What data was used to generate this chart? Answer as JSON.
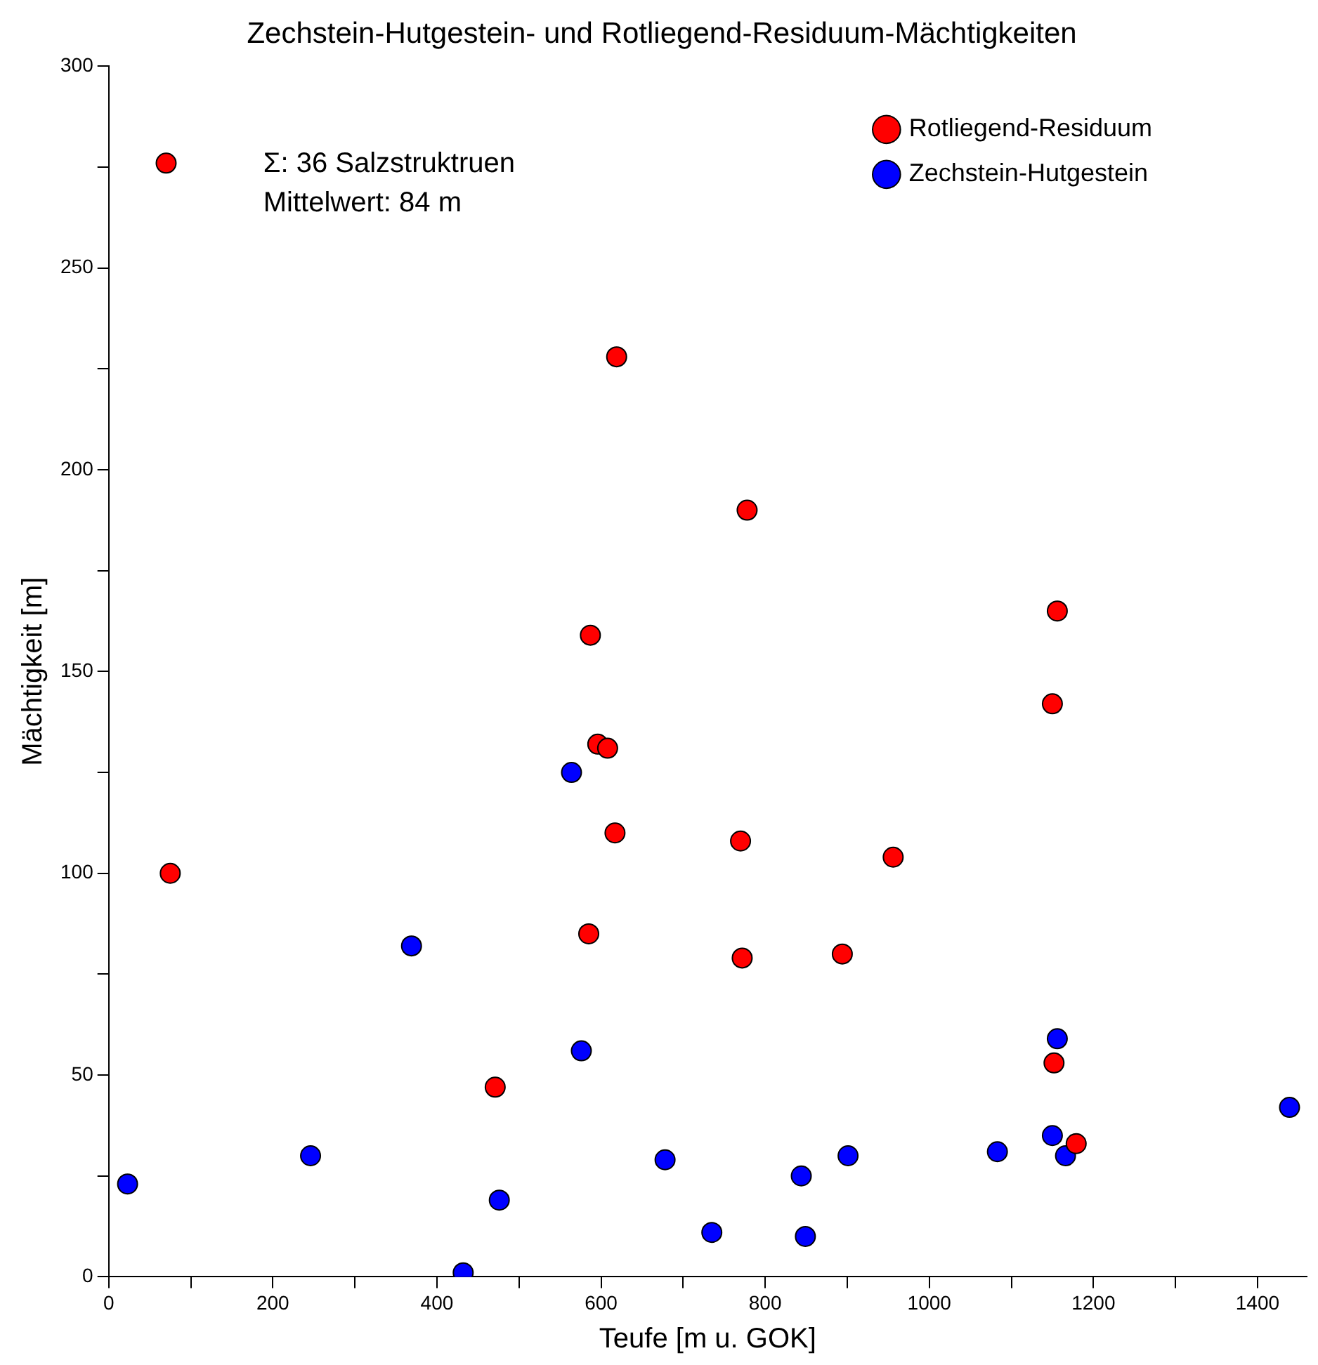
{
  "chart_data": {
    "type": "scatter",
    "title": "Zechstein-Hutgestein- und Rotliegend-Residuum-Mächtigkeiten",
    "xlabel": "Teufe [m u. GOK]",
    "ylabel": "Mächtigkeit [m]",
    "xlim": [
      0,
      1460
    ],
    "ylim": [
      0,
      300
    ],
    "xticks": [
      0,
      {
        "value": 100,
        "label": null
      },
      200,
      {
        "value": 300,
        "label": null
      },
      400,
      {
        "value": 500,
        "label": null
      },
      600,
      {
        "value": 700,
        "label": null
      },
      800,
      {
        "value": 900,
        "label": null
      },
      1000,
      {
        "value": 1100,
        "label": null
      },
      1200,
      {
        "value": 1300,
        "label": null
      },
      1400
    ],
    "yticks": [
      0,
      {
        "value": 25,
        "label": null
      },
      50,
      {
        "value": 75,
        "label": null
      },
      100,
      {
        "value": 125,
        "label": null
      },
      150,
      {
        "value": 175,
        "label": null
      },
      200,
      {
        "value": 225,
        "label": null
      },
      250,
      {
        "value": 275,
        "label": null
      },
      300
    ],
    "grid": false,
    "legend": "top right",
    "marker": "circle",
    "annotations": [
      "Σ: 36 Salzstruktruen",
      "Mittelwert: 84 m"
    ],
    "series": [
      {
        "name": "Rotliegend-Residuum",
        "color": "#ff0000",
        "x": [
          70,
          619,
          778,
          1156,
          587,
          1150,
          596,
          608,
          617,
          770,
          956,
          75,
          585,
          894,
          772,
          1152,
          471,
          1179
        ],
        "values": [
          276,
          228,
          190,
          165,
          159,
          142,
          132,
          131,
          110,
          108,
          104,
          100,
          85,
          80,
          79,
          53,
          47,
          33
        ]
      },
      {
        "name": "Zechstein-Hutgestein",
        "color": "#0000ff",
        "x": [
          564,
          369,
          1156,
          576,
          1439,
          1150,
          246,
          1166,
          901,
          1083,
          678,
          844,
          23,
          476,
          735,
          849,
          432
        ],
        "values": [
          125,
          82,
          59,
          56,
          42,
          35,
          30,
          30,
          30,
          31,
          29,
          25,
          23,
          19,
          11,
          10,
          1
        ]
      }
    ]
  }
}
